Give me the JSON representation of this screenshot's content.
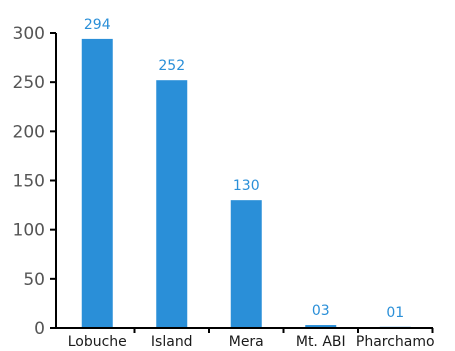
{
  "chart_data": {
    "type": "bar",
    "categories": [
      "Lobuche",
      "Island",
      "Mera",
      "Mt. ABI",
      "Pharchamo"
    ],
    "values": [
      294,
      252,
      130,
      3,
      1
    ],
    "data_labels": [
      "294",
      "252",
      "130",
      "03",
      "01"
    ],
    "ylim": [
      0,
      300
    ],
    "yticks": [
      0,
      50,
      100,
      150,
      200,
      250,
      300
    ],
    "ytick_labels": [
      "0",
      "50",
      "100",
      "150",
      "200",
      "250",
      "300"
    ],
    "grid": false,
    "legend": "none",
    "colors": {
      "bar": "#2a8fd8",
      "data_label": "#2a8fd8",
      "axis": "#000000"
    }
  }
}
